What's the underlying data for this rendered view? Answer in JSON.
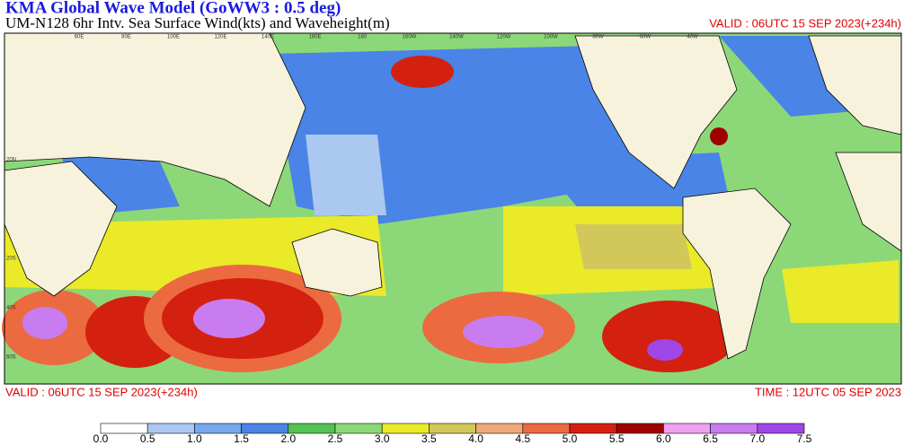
{
  "header": {
    "title": "KMA  Global Wave Model (GoWW3 : 0.5 deg)",
    "subtitle": "UM-N128  6hr Intv. Sea Surface Wind(kts) and Waveheight(m)",
    "valid": "VALID : 06UTC 15 SEP 2023(+234h)"
  },
  "map": {
    "lon_labels": [
      "60E",
      "80E",
      "100E",
      "120E",
      "140E",
      "160E",
      "180",
      "160W",
      "140W",
      "120W",
      "100W",
      "80W",
      "60W",
      "40W"
    ],
    "lat_labels": [
      "20N",
      "20S",
      "40S",
      "60S"
    ]
  },
  "footer": {
    "valid": "VALID : 06UTC 15 SEP 2023(+234h)",
    "time": "TIME : 12UTC 05 SEP 2023"
  },
  "colorbar": {
    "labels": [
      "0.0",
      "0.5",
      "1.0",
      "1.5",
      "2.0",
      "2.5",
      "3.0",
      "3.5",
      "4.0",
      "4.5",
      "5.0",
      "5.5",
      "6.0",
      "6.5",
      "7.0",
      "7.5"
    ],
    "colors": [
      "#ffffff",
      "#aac8f0",
      "#78a8f0",
      "#4a84e6",
      "#52c352",
      "#8cd878",
      "#eaea28",
      "#d2c85a",
      "#f0a878",
      "#ec6a40",
      "#d4200e",
      "#a00000",
      "#f0a0f0",
      "#c87cf0",
      "#a046e6"
    ]
  }
}
